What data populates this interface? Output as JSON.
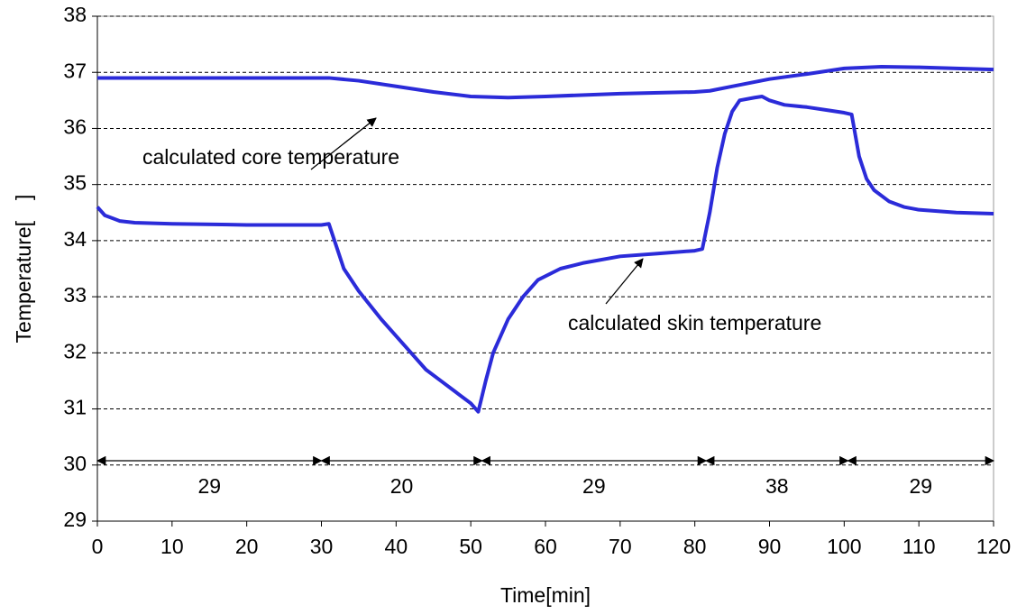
{
  "chart_data": {
    "type": "line",
    "xlabel": "Time[min]",
    "ylabel": "Temperature[　]",
    "xlim": [
      0,
      120
    ],
    "xticks": [
      0,
      10,
      20,
      30,
      40,
      50,
      60,
      70,
      80,
      90,
      100,
      110,
      120
    ],
    "ylim": [
      29,
      38
    ],
    "yticks": [
      29,
      30,
      31,
      32,
      33,
      34,
      35,
      36,
      37,
      38
    ],
    "grid": true,
    "series": [
      {
        "color": "#2b2bd9",
        "x": [
          0,
          30,
          31,
          35,
          40,
          45,
          50,
          55,
          60,
          70,
          80,
          82,
          85,
          90,
          95,
          100,
          105,
          110,
          120
        ],
        "values": [
          36.9,
          36.9,
          36.9,
          36.85,
          36.75,
          36.65,
          36.57,
          36.55,
          36.57,
          36.62,
          36.65,
          36.67,
          36.75,
          36.88,
          36.97,
          37.07,
          37.1,
          37.09,
          37.05
        ]
      },
      {
        "color": "#2b2bd9",
        "x": [
          0,
          1,
          3,
          5,
          10,
          20,
          30,
          31,
          32,
          33,
          35,
          38,
          40,
          42,
          44,
          46,
          48,
          50,
          51,
          52,
          53,
          55,
          57,
          59,
          62,
          65,
          70,
          75,
          80,
          81,
          82,
          83,
          84,
          85,
          86,
          88,
          89,
          90,
          92,
          95,
          98,
          100,
          101,
          102,
          103,
          104,
          106,
          108,
          110,
          115,
          120
        ],
        "values": [
          34.6,
          34.45,
          34.35,
          34.32,
          34.3,
          34.28,
          34.28,
          34.3,
          33.9,
          33.5,
          33.1,
          32.6,
          32.3,
          32.0,
          31.7,
          31.5,
          31.3,
          31.1,
          30.95,
          31.5,
          32.0,
          32.6,
          33.0,
          33.3,
          33.5,
          33.6,
          33.72,
          33.77,
          33.82,
          33.85,
          34.5,
          35.3,
          35.9,
          36.3,
          36.5,
          36.55,
          36.57,
          36.5,
          36.42,
          36.38,
          36.32,
          36.28,
          36.25,
          35.5,
          35.1,
          34.9,
          34.7,
          34.6,
          34.55,
          34.5,
          34.48
        ]
      }
    ],
    "annotations": [
      "calculated core temperature",
      "calculated skin temperature"
    ],
    "periods": [
      {
        "label": "29",
        "start": 0,
        "end": 30
      },
      {
        "label": "20",
        "start": 30,
        "end": 51.5
      },
      {
        "label": "29",
        "start": 51.5,
        "end": 81.5
      },
      {
        "label": "38",
        "start": 81.5,
        "end": 100.5
      },
      {
        "label": "29",
        "start": 100.5,
        "end": 120
      }
    ]
  }
}
